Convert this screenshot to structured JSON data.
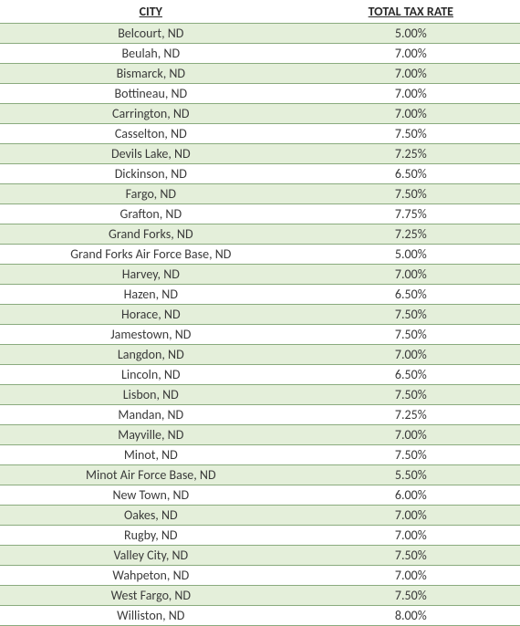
{
  "table": {
    "type": "table",
    "background_color": "#ffffff",
    "alt_row_color": "#e4efda",
    "border_color": "#8aab7e",
    "text_color": "#3a3a3a",
    "header_text_color": "#2a2a2a",
    "font_family": "Calibri",
    "header_fontsize": 14,
    "cell_fontsize": 14,
    "columns": [
      {
        "label": "CITY",
        "width_pct": 58,
        "align": "center"
      },
      {
        "label": "TOTAL TAX RATE",
        "width_pct": 42,
        "align": "center"
      }
    ],
    "rows": [
      {
        "city": "Belcourt, ND",
        "rate": "5.00%"
      },
      {
        "city": "Beulah, ND",
        "rate": "7.00%"
      },
      {
        "city": "Bismarck, ND",
        "rate": "7.00%"
      },
      {
        "city": "Bottineau, ND",
        "rate": "7.00%"
      },
      {
        "city": "Carrington, ND",
        "rate": "7.00%"
      },
      {
        "city": "Casselton, ND",
        "rate": "7.50%"
      },
      {
        "city": "Devils Lake, ND",
        "rate": "7.25%"
      },
      {
        "city": "Dickinson, ND",
        "rate": "6.50%"
      },
      {
        "city": "Fargo, ND",
        "rate": "7.50%"
      },
      {
        "city": "Grafton, ND",
        "rate": "7.75%"
      },
      {
        "city": "Grand Forks, ND",
        "rate": "7.25%"
      },
      {
        "city": "Grand Forks Air Force Base, ND",
        "rate": "5.00%"
      },
      {
        "city": "Harvey, ND",
        "rate": "7.00%"
      },
      {
        "city": "Hazen, ND",
        "rate": "6.50%"
      },
      {
        "city": "Horace, ND",
        "rate": "7.50%"
      },
      {
        "city": "Jamestown, ND",
        "rate": "7.50%"
      },
      {
        "city": "Langdon, ND",
        "rate": "7.00%"
      },
      {
        "city": "Lincoln, ND",
        "rate": "6.50%"
      },
      {
        "city": "Lisbon, ND",
        "rate": "7.50%"
      },
      {
        "city": "Mandan, ND",
        "rate": "7.25%"
      },
      {
        "city": "Mayville, ND",
        "rate": "7.00%"
      },
      {
        "city": "Minot, ND",
        "rate": "7.50%"
      },
      {
        "city": "Minot Air Force Base, ND",
        "rate": "5.50%"
      },
      {
        "city": "New Town, ND",
        "rate": "6.00%"
      },
      {
        "city": "Oakes, ND",
        "rate": "7.00%"
      },
      {
        "city": "Rugby, ND",
        "rate": "7.00%"
      },
      {
        "city": "Valley City, ND",
        "rate": "7.50%"
      },
      {
        "city": "Wahpeton, ND",
        "rate": "7.00%"
      },
      {
        "city": "West Fargo, ND",
        "rate": "7.50%"
      },
      {
        "city": "Williston, ND",
        "rate": "8.00%"
      }
    ]
  }
}
